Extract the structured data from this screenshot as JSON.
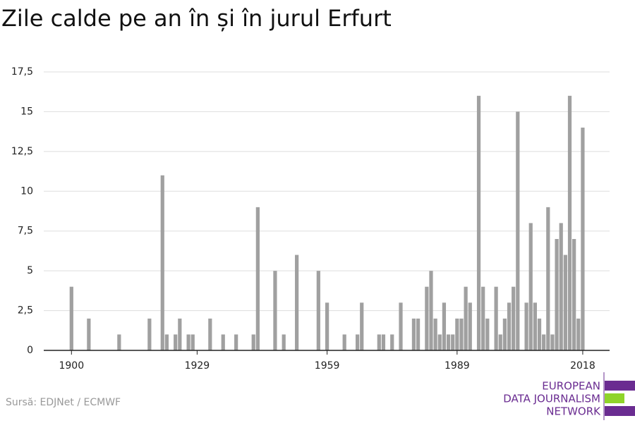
{
  "chart_data": {
    "type": "bar",
    "title": "Zile calde pe an în și în jurul Erfurt",
    "source": "Sursă: EDJNet / ECMWF",
    "logo": [
      "EUROPEAN",
      "DATA JOURNALISM",
      "NETWORK"
    ],
    "color": "#a0a0a0",
    "x": [
      1900,
      1904,
      1911,
      1918,
      1921,
      1922,
      1924,
      1925,
      1927,
      1928,
      1932,
      1935,
      1938,
      1942,
      1943,
      1947,
      1949,
      1952,
      1957,
      1959,
      1963,
      1966,
      1967,
      1971,
      1972,
      1974,
      1976,
      1979,
      1980,
      1982,
      1983,
      1984,
      1985,
      1986,
      1987,
      1988,
      1989,
      1990,
      1991,
      1992,
      1994,
      1995,
      1996,
      1998,
      1999,
      2000,
      2001,
      2002,
      2003,
      2005,
      2006,
      2007,
      2008,
      2009,
      2010,
      2011,
      2012,
      2013,
      2014,
      2015,
      2016,
      2017,
      2018
    ],
    "values": [
      4,
      2,
      1,
      2,
      11,
      1,
      1,
      2,
      1,
      1,
      2,
      1,
      1,
      1,
      9,
      5,
      1,
      6,
      5,
      3,
      1,
      1,
      3,
      1,
      1,
      1,
      3,
      2,
      2,
      4,
      5,
      2,
      1,
      3,
      1,
      1,
      2,
      2,
      4,
      3,
      16,
      4,
      2,
      4,
      1,
      2,
      3,
      4,
      15,
      3,
      8,
      3,
      2,
      1,
      9,
      1,
      7,
      8,
      6,
      16,
      7,
      2,
      14
    ],
    "xlim": [
      1893.6,
      2024.2
    ],
    "xticks": [
      1900,
      1929,
      1959,
      1989,
      2018
    ],
    "ylim": [
      0,
      17.5
    ],
    "yticks": [
      0,
      {
        "value": 2.5,
        "label": "2,5"
      },
      5,
      {
        "value": 7.5,
        "label": "7,5"
      },
      10,
      {
        "value": 12.5,
        "label": "12,5"
      },
      15,
      {
        "value": 17.5,
        "label": "17,5"
      }
    ],
    "grid": true
  }
}
